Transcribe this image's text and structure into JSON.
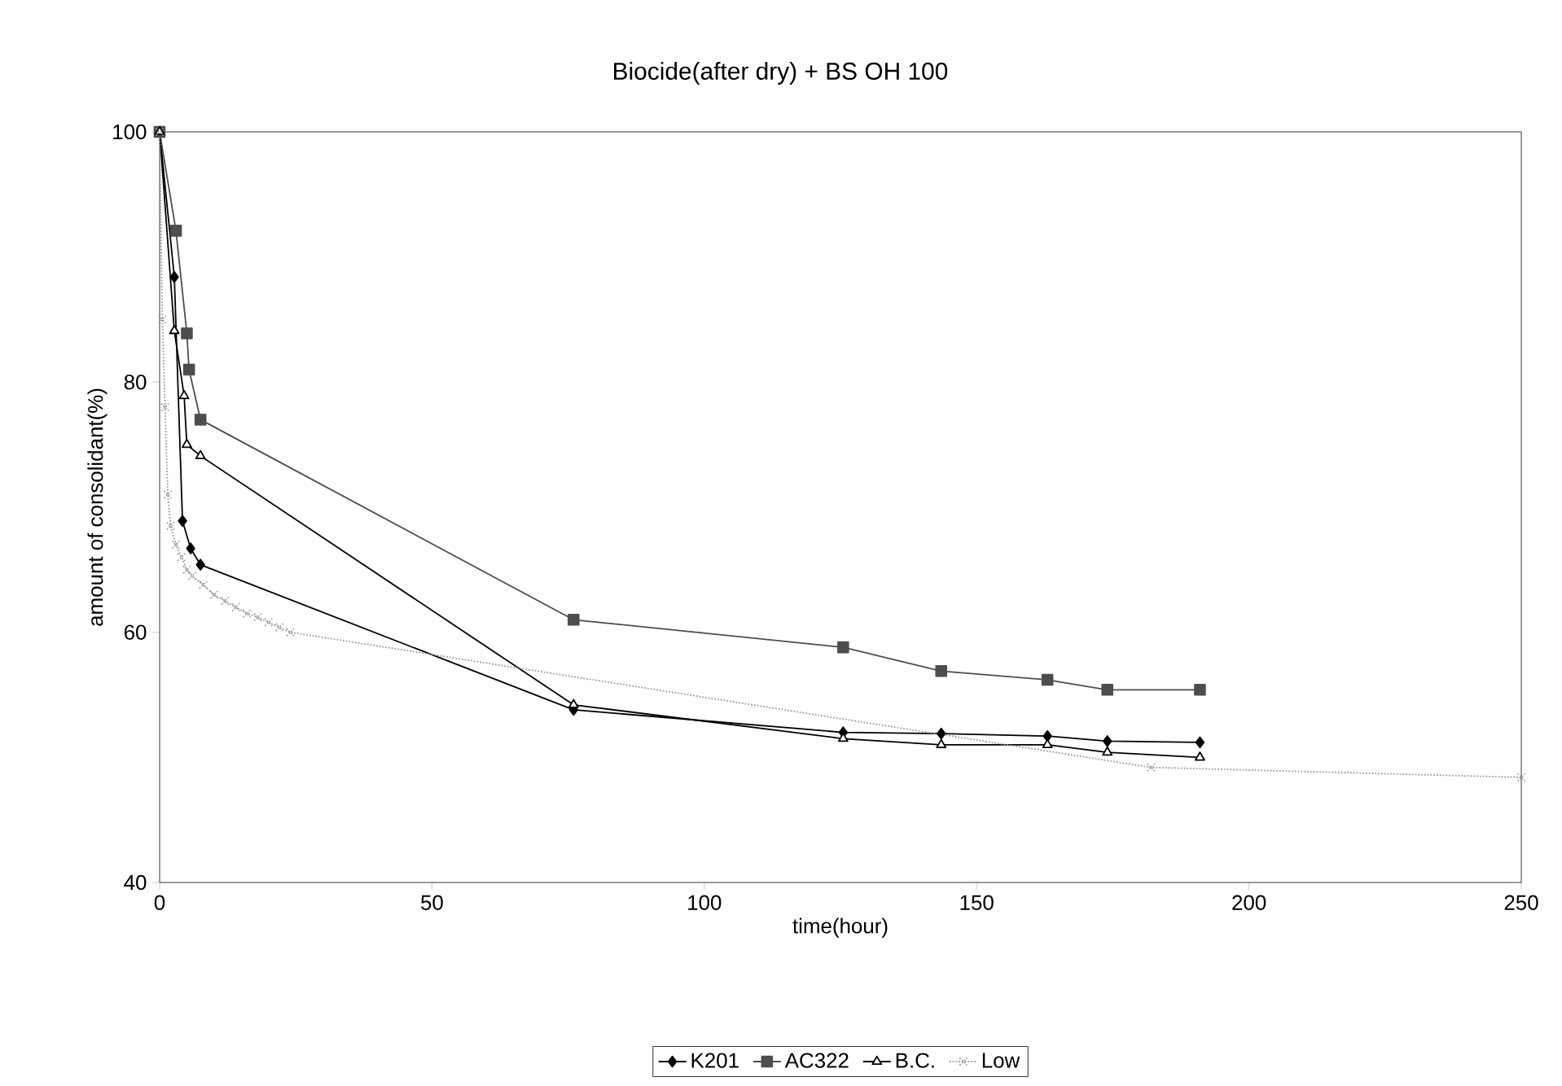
{
  "chart_data": {
    "type": "line",
    "title": "Biocide(after dry) + BS OH 100",
    "xlabel": "time(hour)",
    "ylabel": "amount of consolidant(%)",
    "xlim": [
      0,
      250
    ],
    "xticks": [
      0,
      50,
      100,
      150,
      200,
      250
    ],
    "ylim": [
      40,
      100
    ],
    "yticks": [
      40,
      60,
      80,
      100
    ],
    "grid": false,
    "legend": "bottom",
    "series": [
      {
        "name": "K201",
        "color": "#000000",
        "marker": "diamond",
        "line_style": "solid",
        "x": [
          0,
          2.7,
          4.2,
          5.7,
          7.5,
          76,
          125.5,
          143.5,
          163,
          174,
          191
        ],
        "values": [
          100,
          88.4,
          68.9,
          66.7,
          65.4,
          53.8,
          52.0,
          51.9,
          51.7,
          51.3,
          51.2
        ]
      },
      {
        "name": "AC322",
        "color": "#4d4d4d",
        "marker": "square",
        "line_style": "solid",
        "x": [
          0,
          3,
          5,
          5.4,
          7.5,
          76,
          125.5,
          143.5,
          163,
          174,
          191
        ],
        "values": [
          100,
          92.1,
          83.9,
          81.0,
          77.0,
          61.0,
          58.8,
          56.9,
          56.2,
          55.4,
          55.4
        ]
      },
      {
        "name": "B.C.",
        "color": "#000000",
        "marker": "triangle",
        "line_style": "solid",
        "x": [
          0,
          2.7,
          4.5,
          5,
          7.5,
          76,
          125.5,
          143.5,
          163,
          174,
          191
        ],
        "values": [
          100,
          84.1,
          78.9,
          75.0,
          74.1,
          54.2,
          51.5,
          51.0,
          51.0,
          50.4,
          50.0
        ]
      },
      {
        "name": "Low",
        "color": "#9a9a9a",
        "marker": "cross",
        "line_style": "dotted",
        "x": [
          0,
          0.5,
          1,
          1.5,
          2,
          3,
          4,
          5,
          6,
          8,
          10,
          12,
          14,
          16,
          18,
          20,
          22,
          24,
          182,
          250
        ],
        "values": [
          100,
          85,
          78,
          71,
          68.5,
          67,
          66,
          65,
          64.5,
          63.8,
          63,
          62.5,
          62,
          61.5,
          61.2,
          60.8,
          60.4,
          60,
          49.2,
          48.4
        ]
      }
    ]
  }
}
